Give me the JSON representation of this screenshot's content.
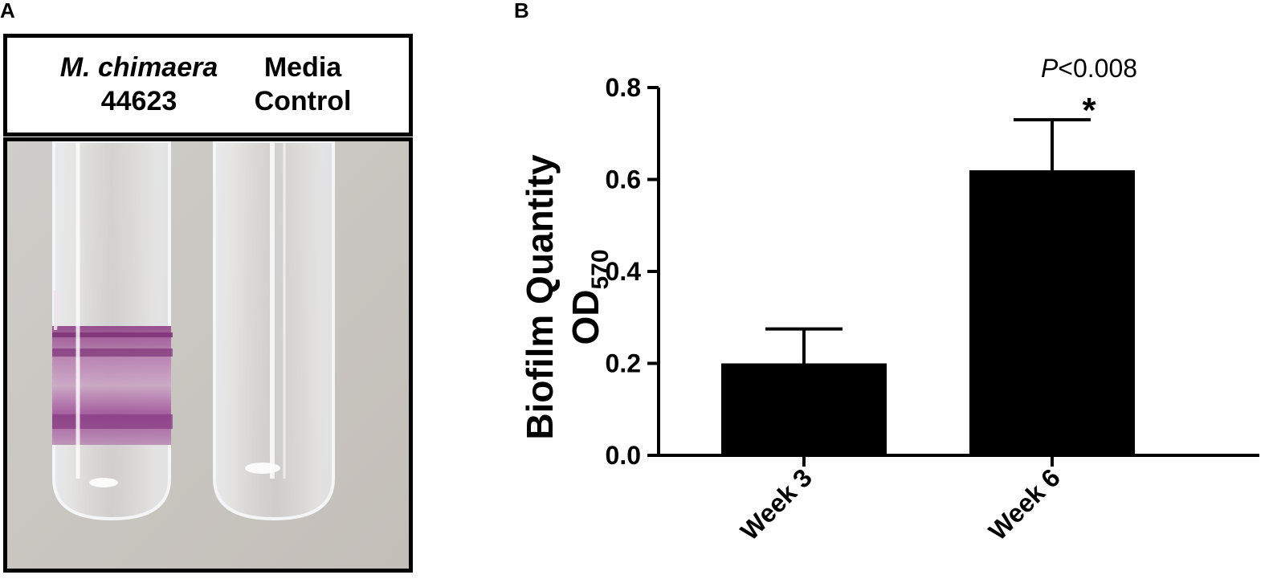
{
  "panel_a": {
    "letter": "A",
    "tube1": {
      "line1": "M. chimaera",
      "line2": "44623"
    },
    "tube2": {
      "line1": "Media",
      "line2": "Control"
    }
  },
  "panel_b": {
    "letter": "B",
    "annotation": {
      "italic": "P",
      "rest": "<0.008"
    },
    "star": "*"
  },
  "chart_data": {
    "type": "bar",
    "categories": [
      "Week 3",
      "Week 6"
    ],
    "values": [
      0.2,
      0.62
    ],
    "errors": [
      0.075,
      0.11
    ],
    "ylabel": "Biofilm Quantity",
    "ylabel2_main": "OD",
    "ylabel2_sub": "570",
    "ylim": [
      0,
      0.8
    ],
    "yticks": [
      "0.0",
      "0.2",
      "0.4",
      "0.6",
      "0.8"
    ],
    "bar_color": "#000000",
    "grid": false
  }
}
